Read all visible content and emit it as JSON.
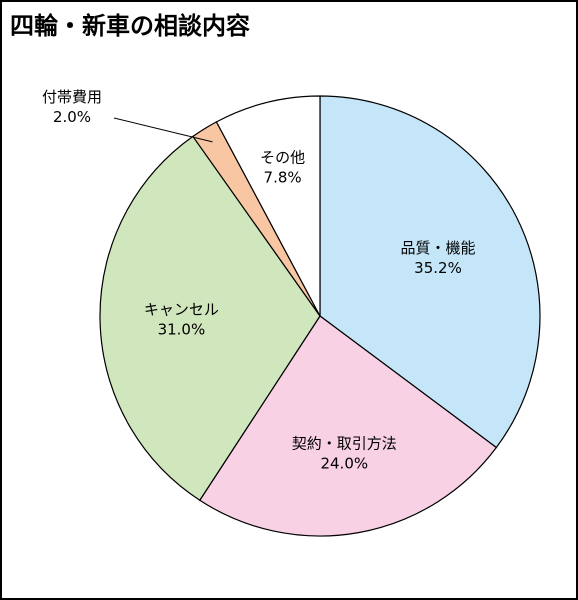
{
  "chart_data": {
    "type": "pie",
    "title": "四輪・新車の相談内容",
    "slices": [
      {
        "label": "品質・機能",
        "value": 35.2,
        "display": "35.2%",
        "color": "#c5e6f8"
      },
      {
        "label": "契約・取引方法",
        "value": 24.0,
        "display": "24.0%",
        "color": "#f9d1e5"
      },
      {
        "label": "キャンセル",
        "value": 31.0,
        "display": "31.0%",
        "color": "#d0e6bc"
      },
      {
        "label": "付帯費用",
        "value": 2.0,
        "display": "2.0%",
        "color": "#f8c6a2"
      },
      {
        "label": "その他",
        "value": 7.8,
        "display": "7.8%",
        "color": "#ffffff"
      }
    ],
    "start_angle_deg": 0,
    "direction": "clockwise",
    "legend": "none",
    "grid": false
  }
}
